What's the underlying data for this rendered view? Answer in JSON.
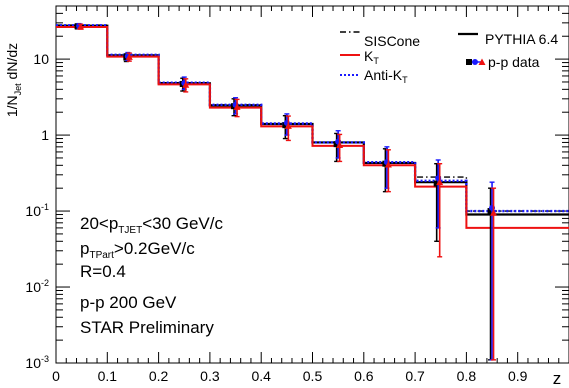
{
  "chart_data": {
    "type": "step",
    "xlabel": "z",
    "ylabel_main": "1/N",
    "ylabel_sub": "Jet",
    "ylabel_rest": " dN/dz",
    "xlim": [
      0,
      1
    ],
    "ylim": [
      0.001,
      50
    ],
    "yscale": "log",
    "x_ticks": [
      {
        "v": 0,
        "label": "0"
      },
      {
        "v": 0.1,
        "label": "0.1"
      },
      {
        "v": 0.2,
        "label": "0.2"
      },
      {
        "v": 0.3,
        "label": "0.3"
      },
      {
        "v": 0.4,
        "label": "0.4"
      },
      {
        "v": 0.5,
        "label": "0.5"
      },
      {
        "v": 0.6,
        "label": "0.6"
      },
      {
        "v": 0.7,
        "label": "0.7"
      },
      {
        "v": 0.8,
        "label": "0.8"
      },
      {
        "v": 0.9,
        "label": "0.9"
      }
    ],
    "y_ticks": [
      {
        "v": 10,
        "base": "10",
        "exp": ""
      },
      {
        "v": 1,
        "base": "1",
        "exp": ""
      },
      {
        "v": 0.1,
        "base": "10",
        "exp": "-1"
      },
      {
        "v": 0.01,
        "base": "10",
        "exp": "-2"
      },
      {
        "v": 0.001,
        "base": "10",
        "exp": "-3"
      }
    ],
    "bin_edges": [
      0,
      0.1,
      0.2,
      0.3,
      0.4,
      0.5,
      0.6,
      0.7,
      0.8,
      1.0
    ],
    "histograms": [
      {
        "name": "SISCone",
        "color": "#000000",
        "dash": "6,3,1.5,3",
        "width": 1.4,
        "values": [
          28,
          11.3,
          4.9,
          2.5,
          1.4,
          0.8,
          0.43,
          0.28,
          0.1
        ]
      },
      {
        "name": "PYTHIA 6.4",
        "color": "#000000",
        "dash": "",
        "width": 2.2,
        "values": [
          27.5,
          11.2,
          4.8,
          2.45,
          1.4,
          0.8,
          0.43,
          0.24,
          0.09
        ]
      },
      {
        "name": "Anti-K",
        "sub": "T",
        "color": "#1a1aff",
        "dash": "2,2",
        "width": 2.4,
        "values": [
          27.8,
          11.4,
          4.9,
          2.5,
          1.42,
          0.8,
          0.44,
          0.25,
          0.1
        ]
      },
      {
        "name": "K",
        "sub": "T",
        "color": "#ee1111",
        "dash": "",
        "width": 2.0,
        "values": [
          26.5,
          10.8,
          4.65,
          2.3,
          1.3,
          0.72,
          0.4,
          0.21,
          0.06
        ]
      }
    ],
    "data_points": {
      "name": "p-p data",
      "x": [
        0.045,
        0.14,
        0.25,
        0.35,
        0.45,
        0.55,
        0.645,
        0.745,
        0.85
      ],
      "series": [
        {
          "color": "#000000",
          "marker": "square",
          "y": [
            27,
            10.5,
            4.7,
            2.4,
            1.35,
            0.76,
            0.42,
            0.23,
            0.1
          ],
          "lo": [
            25,
            9.3,
            3.8,
            1.8,
            0.9,
            0.45,
            0.18,
            0.04,
            0.0011
          ],
          "hi": [
            29,
            11.7,
            5.6,
            3.0,
            1.8,
            1.05,
            0.66,
            0.42,
            0.2
          ]
        },
        {
          "color": "#1a1aff",
          "marker": "circle",
          "y": [
            27.3,
            10.9,
            4.85,
            2.5,
            1.45,
            0.82,
            0.44,
            0.27,
            0.11
          ],
          "lo": [
            25.3,
            9.6,
            4.0,
            1.9,
            1.0,
            0.5,
            0.2,
            0.06,
            0.0011
          ],
          "hi": [
            29.3,
            12.2,
            5.8,
            3.1,
            1.9,
            1.14,
            0.7,
            0.47,
            0.24
          ]
        },
        {
          "color": "#ee1111",
          "marker": "triangle",
          "y": [
            26.8,
            10.7,
            4.6,
            2.35,
            1.32,
            0.74,
            0.41,
            0.24,
            0.095
          ],
          "lo": [
            24.8,
            9.4,
            3.7,
            1.75,
            0.85,
            0.45,
            0.18,
            0.025,
            0.0011
          ],
          "hi": [
            28.8,
            12.0,
            5.5,
            2.95,
            1.78,
            1.02,
            0.64,
            0.42,
            0.2
          ]
        }
      ]
    },
    "annotations": [
      {
        "id": "ann-1",
        "parts": [
          "20<p",
          "TJET",
          "<30 GeV/c"
        ]
      },
      {
        "id": "ann-2",
        "parts": [
          "p",
          "TPart",
          ">0.2GeV/c"
        ]
      },
      {
        "id": "ann-3",
        "parts": [
          "R=0.4",
          "",
          ""
        ]
      },
      {
        "id": "ann-4",
        "parts": [
          "p-p 200 GeV",
          "",
          ""
        ]
      },
      {
        "id": "ann-5",
        "parts": [
          "STAR Preliminary",
          "",
          ""
        ]
      }
    ],
    "legend_placement": "top-right"
  }
}
